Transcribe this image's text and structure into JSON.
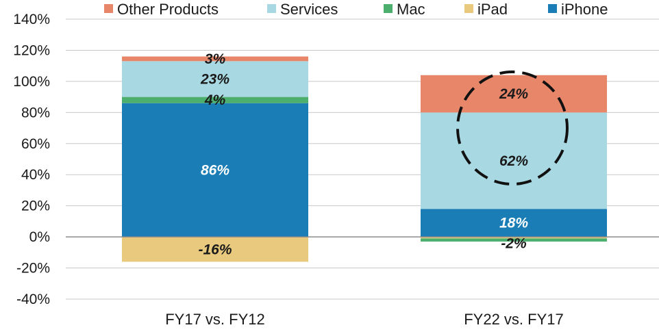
{
  "chart_data": {
    "type": "bar",
    "stacked": true,
    "categories": [
      "FY17 vs. FY12",
      "FY22 vs. FY17"
    ],
    "ylim": [
      -40,
      140
    ],
    "ytick_step": 20,
    "ytick_labels": [
      "-40%",
      "-20%",
      "0%",
      "20%",
      "40%",
      "60%",
      "80%",
      "100%",
      "120%",
      "140%"
    ],
    "grid": true,
    "legend_position": "top",
    "series": [
      {
        "name": "iPhone",
        "color": "#1a7db5",
        "values": [
          86,
          18
        ],
        "labels": [
          "86%",
          "18%"
        ],
        "label_color": "#ffffff"
      },
      {
        "name": "iPad",
        "color": "#e8c97e",
        "values": [
          -16,
          -1
        ],
        "labels": [
          "-16%",
          ""
        ],
        "label_color": "#1a1a1a"
      },
      {
        "name": "Mac",
        "color": "#4caf6e",
        "values": [
          4,
          -2
        ],
        "labels": [
          "4%",
          "-2%"
        ],
        "label_color": "#1a1a1a"
      },
      {
        "name": "Services",
        "color": "#a8d8e2",
        "values": [
          23,
          62
        ],
        "labels": [
          "23%",
          "62%"
        ],
        "label_color": "#1a1a1a"
      },
      {
        "name": "Other Products",
        "color": "#e8866a",
        "values": [
          3,
          24
        ],
        "labels": [
          "3%",
          "24%"
        ],
        "label_color": "#1a1a1a"
      }
    ],
    "legend_order": [
      "Other Products",
      "Services",
      "Mac",
      "iPad",
      "iPhone"
    ],
    "highlight": {
      "category": "FY22 vs. FY17",
      "series": "Services",
      "style": "dashed-circle"
    }
  }
}
